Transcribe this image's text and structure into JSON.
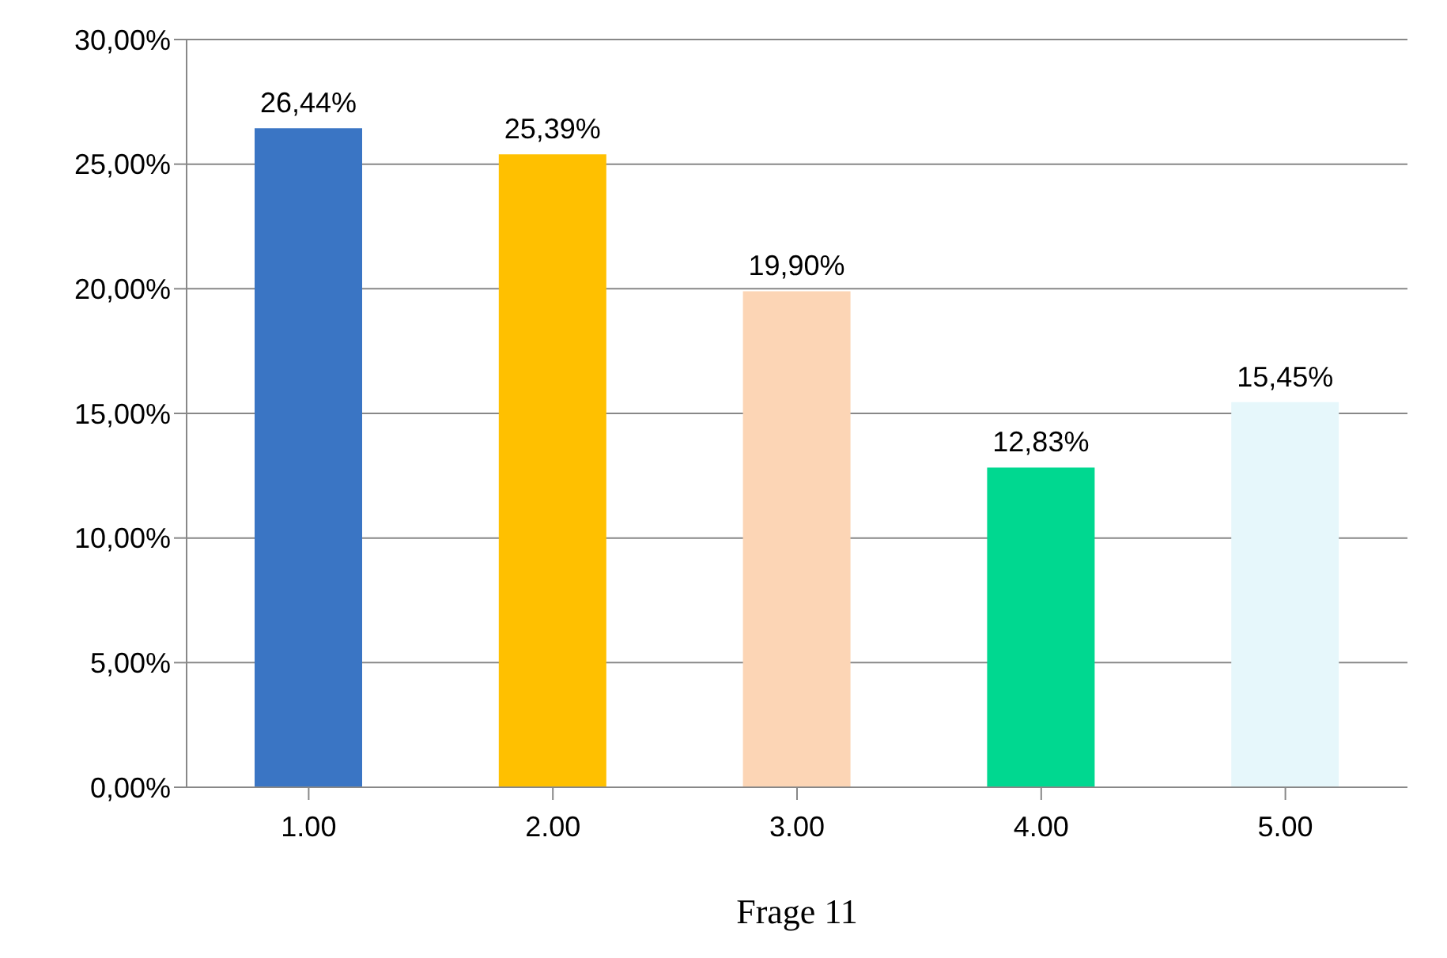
{
  "chart_data": {
    "type": "bar",
    "xlabel": "Frage 11",
    "categories": [
      "1.00",
      "2.00",
      "3.00",
      "4.00",
      "5.00"
    ],
    "values": [
      26.44,
      25.39,
      19.9,
      12.83,
      15.45
    ],
    "colors": [
      "#3a75c4",
      "#ffc000",
      "#fcd5b5",
      "#00d890",
      "#e6f7fb"
    ],
    "value_labels": [
      "26,44%",
      "25,39%",
      "19,90%",
      "12,83%",
      "15,45%"
    ],
    "ylim": [
      0,
      30
    ],
    "yticks": [
      {
        "value": 0,
        "label": "0,00%"
      },
      {
        "value": 5,
        "label": "5,00%"
      },
      {
        "value": 10,
        "label": "10,00%"
      },
      {
        "value": 15,
        "label": "15,00%"
      },
      {
        "value": 20,
        "label": "20,00%"
      },
      {
        "value": 25,
        "label": "25,00%"
      },
      {
        "value": 30,
        "label": "30,00%"
      }
    ],
    "grid": "y",
    "legend": false
  }
}
